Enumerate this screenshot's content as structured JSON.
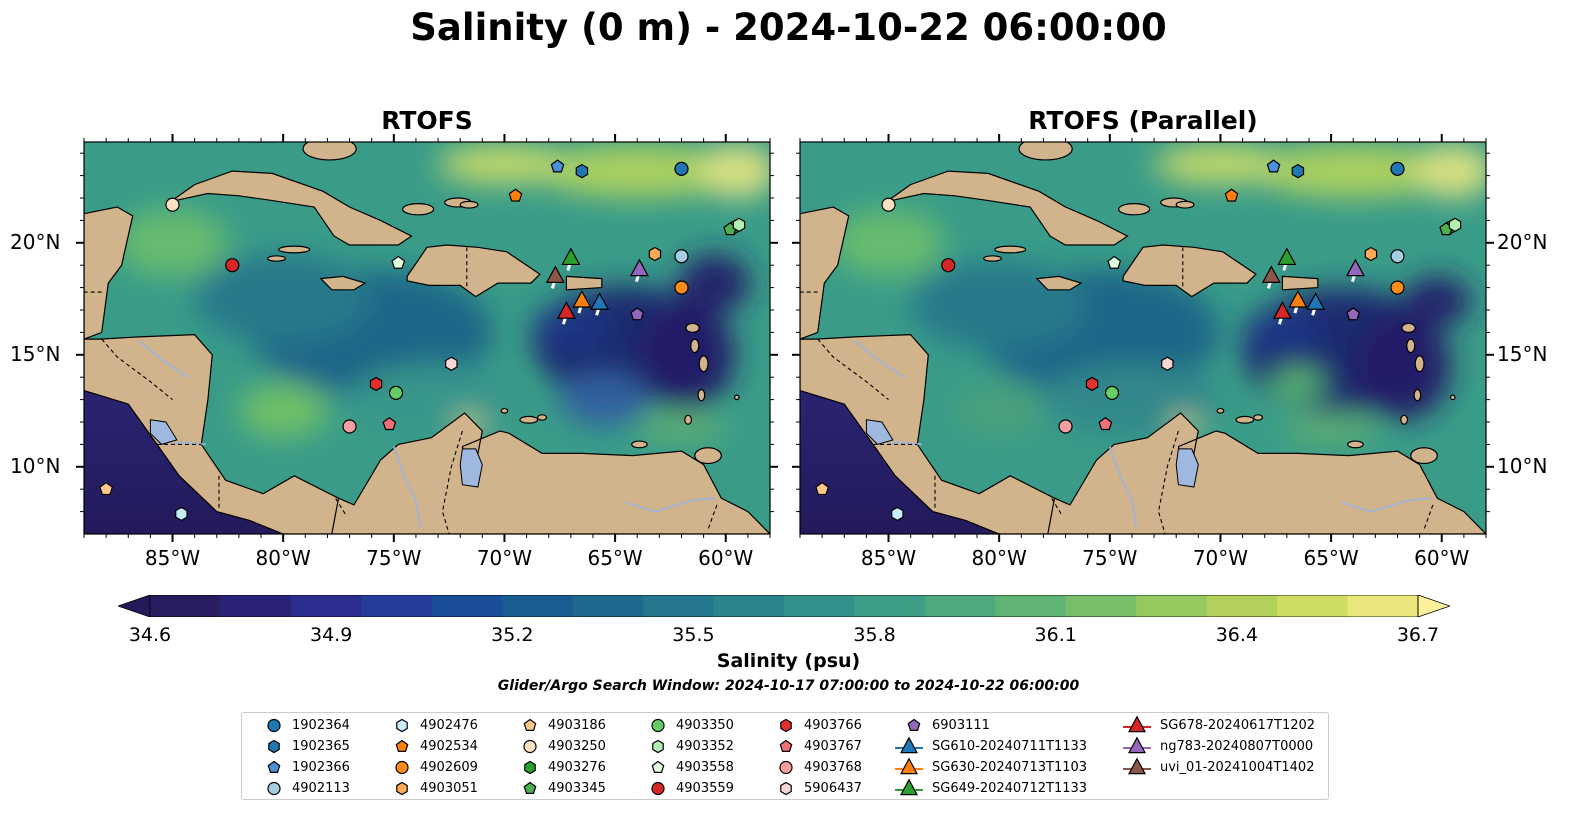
{
  "title": "Salinity (0 m) - 2024-10-22 06:00:00",
  "panels": [
    {
      "title": "RTOFS"
    },
    {
      "title": "RTOFS (Parallel)"
    }
  ],
  "axes": {
    "lat_labels": [
      "20°N",
      "15°N",
      "10°N"
    ],
    "lon_labels": [
      "85°W",
      "80°W",
      "75°W",
      "70°W",
      "65°W",
      "60°W"
    ],
    "lat_values": [
      20,
      15,
      10
    ],
    "lon_values": [
      -85,
      -80,
      -75,
      -70,
      -65,
      -60
    ],
    "lon_range": [
      -89,
      -58
    ],
    "lat_range": [
      7,
      24.5
    ]
  },
  "colorbar": {
    "label": "Salinity (psu)",
    "ticks": [
      "34.6",
      "34.9",
      "35.2",
      "35.5",
      "35.8",
      "36.1",
      "36.4",
      "36.7"
    ],
    "range": [
      34.6,
      36.7
    ],
    "colormap": "haline",
    "extend": "both"
  },
  "search_window": "Glider/Argo Search Window: 2024-10-17 07:00:00 to 2024-10-22 06:00:00",
  "colors": {
    "land": "#d2b48c",
    "lake": "#9fb8e0",
    "river": "#a0b4d8",
    "ocean_mid": "#3c9a8a"
  },
  "legend": [
    {
      "label": "1902364",
      "marker": "circle",
      "color": "#1f77b4"
    },
    {
      "label": "1902365",
      "marker": "hexagon",
      "color": "#1f77b4"
    },
    {
      "label": "1902366",
      "marker": "pentagon",
      "color": "#4a90d9"
    },
    {
      "label": "4902113",
      "marker": "circle",
      "color": "#a6cee3"
    },
    {
      "label": "4902476",
      "marker": "hexagon",
      "color": "#c6ecf7"
    },
    {
      "label": "4902534",
      "marker": "pentagon",
      "color": "#ff7f0e"
    },
    {
      "label": "4902609",
      "marker": "circle",
      "color": "#ff8c1a"
    },
    {
      "label": "4903051",
      "marker": "hexagon",
      "color": "#ffaa55"
    },
    {
      "label": "4903186",
      "marker": "pentagon",
      "color": "#ffc88a"
    },
    {
      "label": "4903250",
      "marker": "circle",
      "color": "#ffe0c2"
    },
    {
      "label": "4903276",
      "marker": "hexagon",
      "color": "#2ca02c"
    },
    {
      "label": "4903345",
      "marker": "pentagon",
      "color": "#4caf50"
    },
    {
      "label": "4903350",
      "marker": "circle",
      "color": "#66cc66"
    },
    {
      "label": "4903352",
      "marker": "hexagon",
      "color": "#b2f0b2"
    },
    {
      "label": "4903558",
      "marker": "pentagon",
      "color": "#e0ffe0"
    },
    {
      "label": "4903559",
      "marker": "circle",
      "color": "#d62728"
    },
    {
      "label": "4903766",
      "marker": "hexagon",
      "color": "#e03030"
    },
    {
      "label": "4903767",
      "marker": "pentagon",
      "color": "#f0707a"
    },
    {
      "label": "4903768",
      "marker": "circle",
      "color": "#f4a0a0"
    },
    {
      "label": "5906437",
      "marker": "hexagon",
      "color": "#fcd5d5"
    },
    {
      "label": "6903111",
      "marker": "pentagon",
      "color": "#9467bd"
    },
    {
      "label": "SG610-20240711T1133",
      "marker": "triangle-line",
      "color": "#1f77b4"
    },
    {
      "label": "SG630-20240713T1103",
      "marker": "triangle-line",
      "color": "#ff7f0e"
    },
    {
      "label": "SG649-20240712T1133",
      "marker": "triangle-line",
      "color": "#2ca02c"
    },
    {
      "label": "SG678-20240617T1202",
      "marker": "triangle-line",
      "color": "#d62728"
    },
    {
      "label": "ng783-20240807T0000",
      "marker": "triangle-line",
      "color": "#9467bd"
    },
    {
      "label": "uvi_01-20241004T1402",
      "marker": "triangle-line",
      "color": "#8c564b"
    }
  ],
  "markers": [
    {
      "id": "1902364",
      "marker": "circle",
      "color": "#1f77b4",
      "lon": -62.0,
      "lat": 23.3
    },
    {
      "id": "1902365",
      "marker": "hexagon",
      "color": "#1f77b4",
      "lon": -66.5,
      "lat": 23.2
    },
    {
      "id": "1902366",
      "marker": "pentagon",
      "color": "#4a90d9",
      "lon": -67.6,
      "lat": 23.4
    },
    {
      "id": "4902113",
      "marker": "circle",
      "color": "#a6cee3",
      "lon": -62.0,
      "lat": 19.4
    },
    {
      "id": "4902476",
      "marker": "hexagon",
      "color": "#c6ecf7",
      "lon": -84.6,
      "lat": 7.9
    },
    {
      "id": "4902534",
      "marker": "pentagon",
      "color": "#ff7f0e",
      "lon": -69.5,
      "lat": 22.1
    },
    {
      "id": "4902609",
      "marker": "circle",
      "color": "#ff8c1a",
      "lon": -62.0,
      "lat": 18.0
    },
    {
      "id": "4903051",
      "marker": "hexagon",
      "color": "#ffaa55",
      "lon": -63.2,
      "lat": 19.5
    },
    {
      "id": "4903186",
      "marker": "pentagon",
      "color": "#ffc88a",
      "lon": -88.0,
      "lat": 9.0
    },
    {
      "id": "4903250",
      "marker": "circle",
      "color": "#ffe0c2",
      "lon": -85.0,
      "lat": 21.7
    },
    {
      "id": "4903276",
      "marker": "hexagon",
      "color": "#2ca02c",
      "lon": -59.6,
      "lat": 20.7
    },
    {
      "id": "4903345",
      "marker": "pentagon",
      "color": "#4caf50",
      "lon": -59.8,
      "lat": 20.6
    },
    {
      "id": "4903350",
      "marker": "circle",
      "color": "#66cc66",
      "lon": -74.9,
      "lat": 13.3
    },
    {
      "id": "4903352",
      "marker": "hexagon",
      "color": "#b2f0b2",
      "lon": -59.4,
      "lat": 20.8
    },
    {
      "id": "4903558",
      "marker": "pentagon",
      "color": "#e0ffe0",
      "lon": -74.8,
      "lat": 19.1
    },
    {
      "id": "4903559",
      "marker": "circle",
      "color": "#d62728",
      "lon": -82.3,
      "lat": 19.0
    },
    {
      "id": "4903766",
      "marker": "hexagon",
      "color": "#e03030",
      "lon": -75.8,
      "lat": 13.7
    },
    {
      "id": "4903767",
      "marker": "pentagon",
      "color": "#f0707a",
      "lon": -75.2,
      "lat": 11.9
    },
    {
      "id": "4903768",
      "marker": "circle",
      "color": "#f4a0a0",
      "lon": -77.0,
      "lat": 11.8
    },
    {
      "id": "5906437",
      "marker": "hexagon",
      "color": "#fcd5d5",
      "lon": -72.4,
      "lat": 14.6
    },
    {
      "id": "6903111",
      "marker": "pentagon",
      "color": "#9467bd",
      "lon": -64.0,
      "lat": 16.8
    },
    {
      "id": "SG610-20240711T1133",
      "marker": "triangle",
      "color": "#1f77b4",
      "lon": -65.7,
      "lat": 17.3
    },
    {
      "id": "SG630-20240713T1103",
      "marker": "triangle",
      "color": "#ff7f0e",
      "lon": -66.5,
      "lat": 17.4
    },
    {
      "id": "SG649-20240712T1133",
      "marker": "triangle",
      "color": "#2ca02c",
      "lon": -67.0,
      "lat": 19.3
    },
    {
      "id": "SG678-20240617T1202",
      "marker": "triangle",
      "color": "#d62728",
      "lon": -67.2,
      "lat": 16.9
    },
    {
      "id": "ng783-20240807T0000",
      "marker": "triangle",
      "color": "#9467bd",
      "lon": -63.9,
      "lat": 18.8
    },
    {
      "id": "uvi_01-20241004T1402",
      "marker": "triangle",
      "color": "#8c564b",
      "lon": -67.7,
      "lat": 18.5
    }
  ]
}
